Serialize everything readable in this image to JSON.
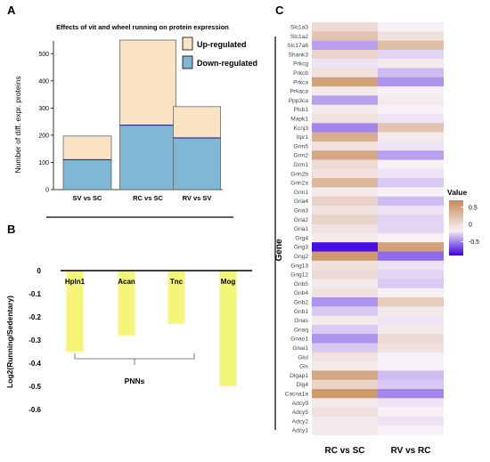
{
  "chart_data": [
    {
      "type": "bar",
      "panel": "A",
      "title": "Effects of vit and wheel running on protein expression",
      "ylabel": "Number of diff. expr. proteins",
      "xlabel": "",
      "ylim": [
        0,
        550
      ],
      "yticks": [
        0,
        100,
        200,
        300,
        400,
        500
      ],
      "categories": [
        "SV vs SC",
        "RC vs SC",
        "RV vs SV"
      ],
      "series": [
        {
          "name": "Down-regulated",
          "values": [
            110,
            237,
            190
          ]
        },
        {
          "name": "Up-regulated",
          "values": [
            87,
            313,
            115
          ]
        }
      ],
      "totals": [
        197,
        550,
        305
      ],
      "legend": "top-right",
      "colors": {
        "up": "#fae3c3",
        "down": "#7fb7d4",
        "up_border": "#b0a268",
        "down_border": "#5a5aa0"
      }
    },
    {
      "type": "bar",
      "panel": "B",
      "title": "",
      "ylabel": "Log2(Running/Sedentary)",
      "xlabel": "",
      "ylim": [
        -0.6,
        0
      ],
      "yticks": [
        0,
        -0.1,
        -0.2,
        -0.3,
        -0.4,
        -0.5,
        -0.6
      ],
      "ytick_labels": [
        "0",
        "-0.1",
        "-0.2",
        "-0.3",
        "-0.4",
        "-0.5",
        "-0.6"
      ],
      "categories": [
        "Hpln1",
        "Acan",
        "Tnc",
        "Mog"
      ],
      "values": [
        -0.35,
        -0.28,
        -0.23,
        -0.5
      ],
      "group_label": "PNNs",
      "colors": {
        "bar": "#f5f57a"
      }
    },
    {
      "type": "heatmap",
      "panel": "C",
      "title": "",
      "ylabel": "Gene",
      "xlabel": "",
      "columns": [
        "RC vs SC",
        "RV vs RC"
      ],
      "rows": [
        "Slc1a3",
        "Slc1a2",
        "Slc17a6",
        "Shank3",
        "Prkcg",
        "Prkcb",
        "Prkca",
        "Prkaca",
        "Ppp3ca",
        "Plcb1",
        "Mapk1",
        "Kcnj3",
        "Itpr1",
        "Grm5",
        "Grm2",
        "Grm1",
        "Grin2b",
        "Grin2a",
        "Grin1",
        "Gria4",
        "Gria3",
        "Gria2",
        "Gria1",
        "Grg4",
        "Gng3",
        "Gng2",
        "Gng13",
        "Gng12",
        "Gnb5",
        "Gnb4",
        "Gnb2",
        "Gnb1",
        "Gnas",
        "Gnaq",
        "Gnao1",
        "Gnai1",
        "Glul",
        "Gls",
        "Dlgap1",
        "Dlg4",
        "Cacna1a",
        "Adcy9",
        "Adcy5",
        "Adcy2",
        "Adcy1"
      ],
      "values": [
        [
          0.15,
          0.0
        ],
        [
          0.3,
          0.1
        ],
        [
          -0.3,
          0.35
        ],
        [
          0.2,
          -0.1
        ],
        [
          -0.05,
          0.05
        ],
        [
          0.1,
          -0.2
        ],
        [
          0.55,
          -0.35
        ],
        [
          0.05,
          0.0
        ],
        [
          -0.3,
          0.05
        ],
        [
          0.05,
          0.0
        ],
        [
          0.1,
          -0.05
        ],
        [
          -0.4,
          0.3
        ],
        [
          0.45,
          0.05
        ],
        [
          0.1,
          -0.05
        ],
        [
          0.5,
          -0.3
        ],
        [
          0.15,
          0.0
        ],
        [
          0.1,
          -0.05
        ],
        [
          0.4,
          -0.15
        ],
        [
          0.05,
          0.0
        ],
        [
          0.2,
          -0.2
        ],
        [
          0.1,
          -0.05
        ],
        [
          0.2,
          -0.1
        ],
        [
          0.1,
          -0.1
        ],
        [
          0.05,
          0.0
        ],
        [
          -0.85,
          0.55
        ],
        [
          0.6,
          -0.5
        ],
        [
          0.1,
          -0.05
        ],
        [
          0.15,
          -0.1
        ],
        [
          0.05,
          -0.15
        ],
        [
          0.1,
          0.0
        ],
        [
          -0.35,
          0.25
        ],
        [
          -0.15,
          0.05
        ],
        [
          0.05,
          -0.05
        ],
        [
          -0.15,
          0.05
        ],
        [
          -0.35,
          0.15
        ],
        [
          -0.15,
          0.1
        ],
        [
          0.1,
          0.0
        ],
        [
          0.05,
          0.0
        ],
        [
          0.5,
          -0.2
        ],
        [
          0.2,
          -0.15
        ],
        [
          0.6,
          -0.4
        ],
        [
          0.05,
          -0.05
        ],
        [
          0.1,
          0.0
        ],
        [
          0.05,
          -0.05
        ],
        [
          0.05,
          0.0
        ]
      ],
      "legend_title": "Value",
      "legend_ticks": [
        0.5,
        0,
        -0.5
      ],
      "legend_tick_labels": [
        "0.5",
        "0",
        "-0.5"
      ],
      "value_range": [
        -0.9,
        0.7
      ],
      "colors": {
        "low": "#3a00e0",
        "mid": "#f7f0f6",
        "high": "#c98a55"
      }
    }
  ],
  "panels": {
    "a": "A",
    "b": "B",
    "c": "C"
  }
}
